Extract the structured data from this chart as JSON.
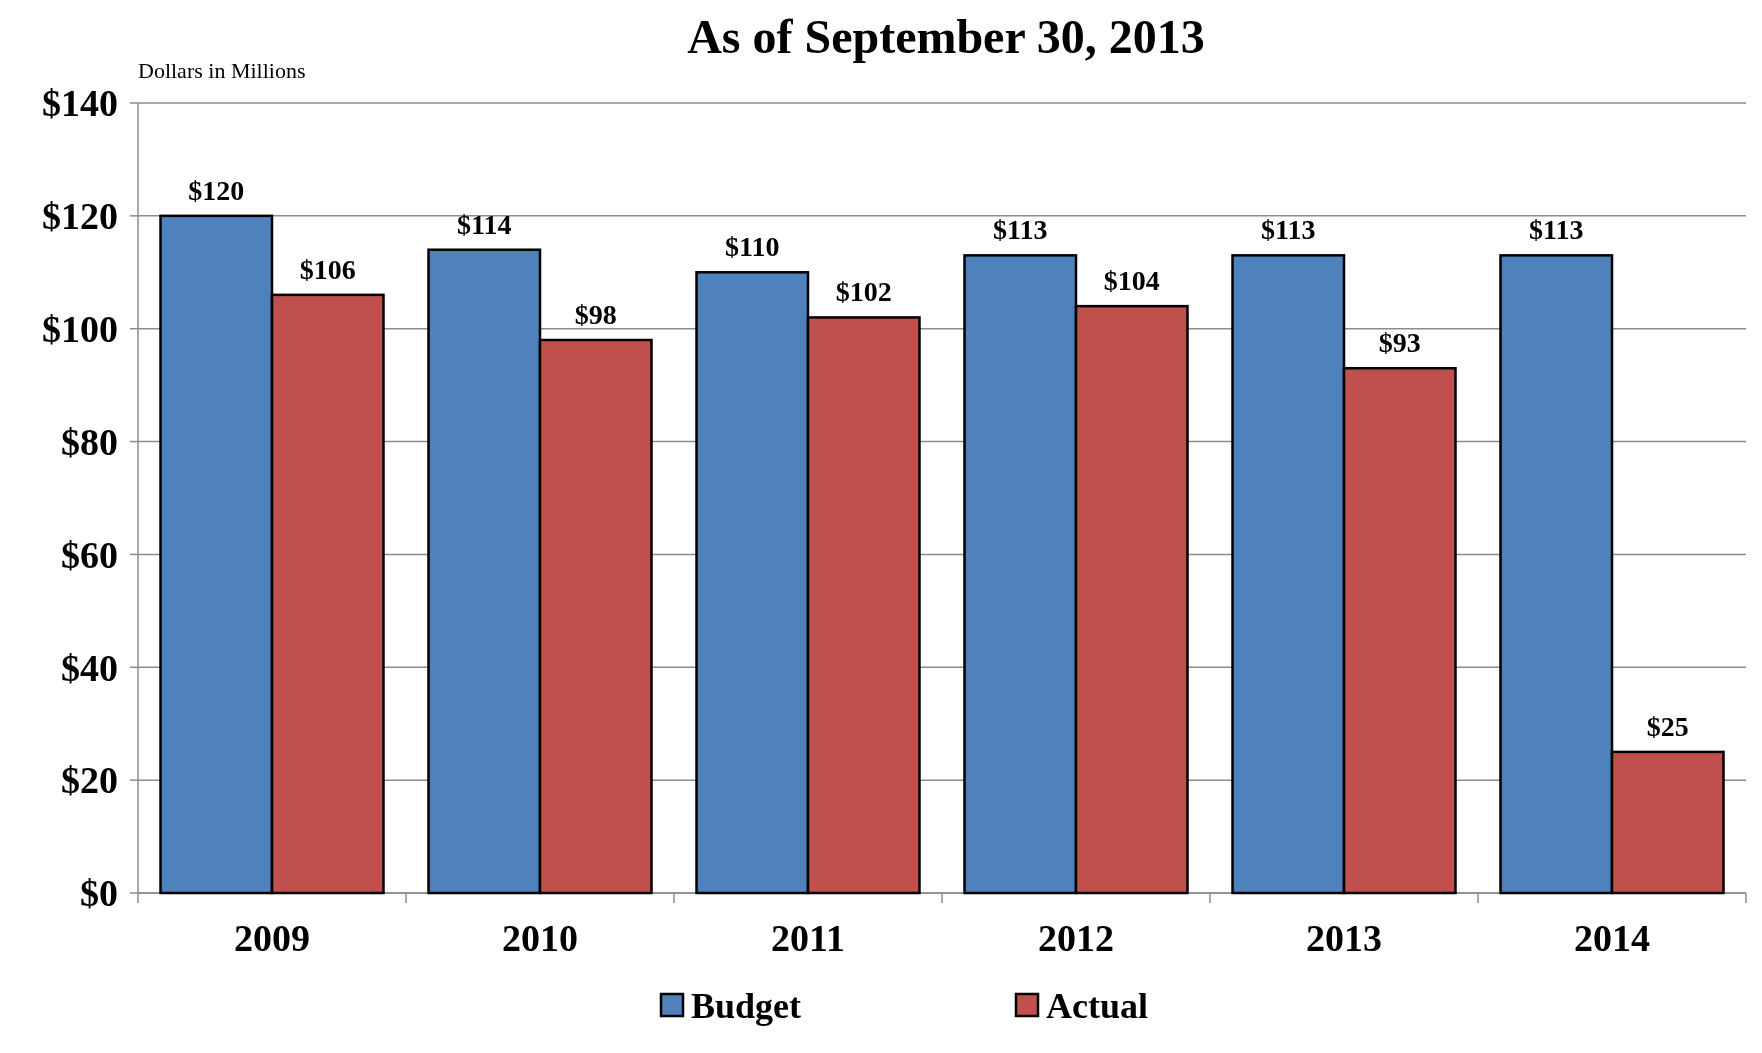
{
  "chart_data": {
    "type": "bar",
    "title": "As of September 30, 2013",
    "ylabel": "Dollars in Millions",
    "categories": [
      "2009",
      "2010",
      "2011",
      "2012",
      "2013",
      "2014"
    ],
    "series": [
      {
        "name": "Budget",
        "color": "#4f81bd",
        "values": [
          120,
          114,
          110,
          113,
          113,
          113
        ],
        "value_labels": [
          "$120",
          "$114",
          "$110",
          "$113",
          "$113",
          "$113"
        ]
      },
      {
        "name": "Actual",
        "color": "#c0504d",
        "values": [
          106,
          98,
          102,
          104,
          93,
          25
        ],
        "value_labels": [
          "$106",
          "$98",
          "$102",
          "$104",
          "$93",
          "$25"
        ]
      }
    ],
    "ylim": [
      0,
      140
    ],
    "yticks": [
      {
        "value": 0,
        "label": "$0"
      },
      {
        "value": 20,
        "label": "$20"
      },
      {
        "value": 40,
        "label": "$40"
      },
      {
        "value": 60,
        "label": "$60"
      },
      {
        "value": 80,
        "label": "$80"
      },
      {
        "value": 100,
        "label": "$100"
      },
      {
        "value": 120,
        "label": "$120"
      },
      {
        "value": 140,
        "label": "$140"
      }
    ],
    "grid": "y",
    "legend": "bottom"
  }
}
